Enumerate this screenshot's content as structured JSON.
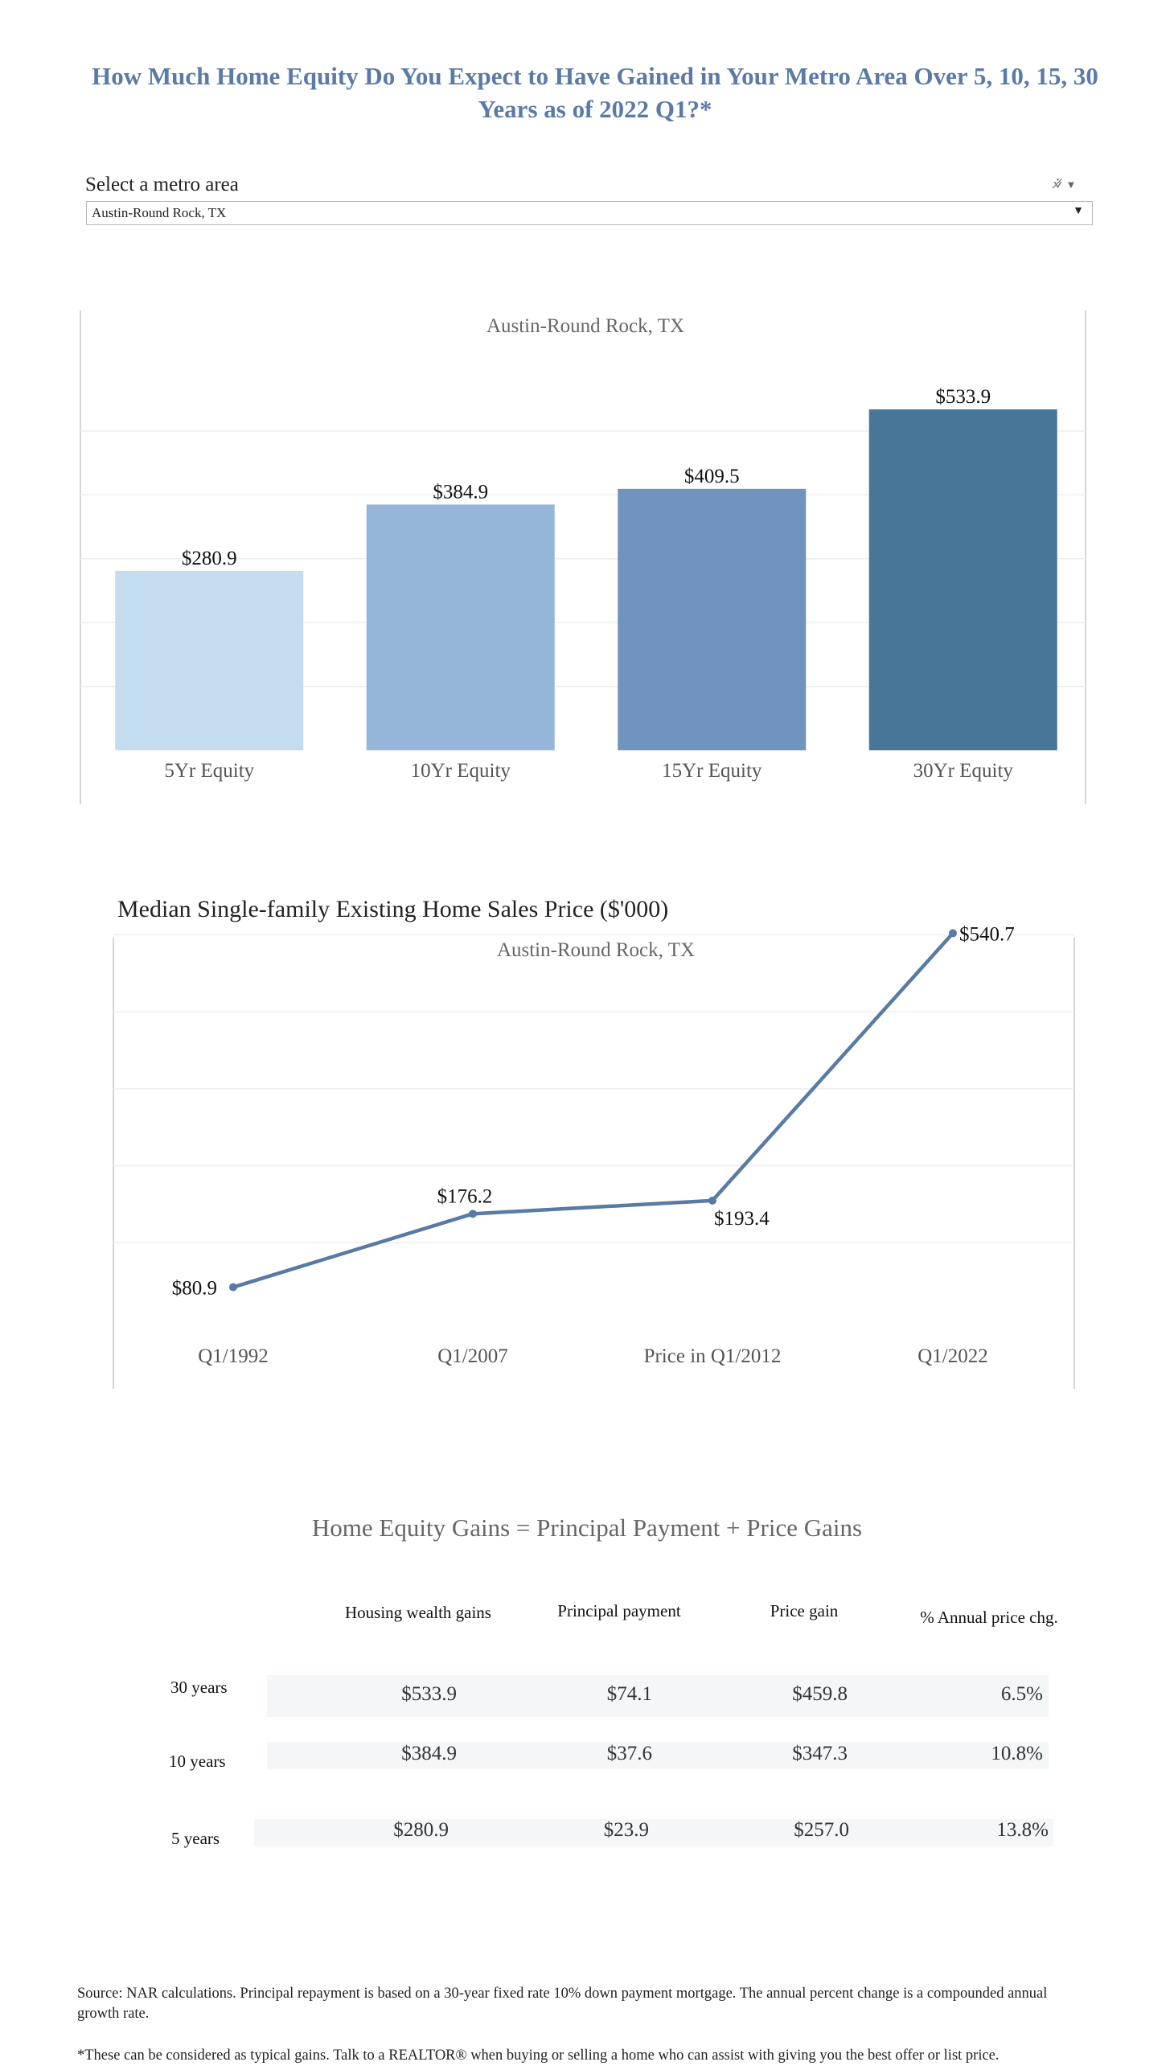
{
  "title": "How Much Home Equity Do You Expect to Have Gained in Your Metro Area Over 5, 10, 15, 30 Years as of 2022 Q1?*",
  "filter": {
    "label": "Select a metro area",
    "selected": "Austin-Round Rock, TX",
    "icons": [
      "clear-filter-icon",
      "dropdown-caret-icon"
    ]
  },
  "chart_data": [
    {
      "type": "bar",
      "title": "Austin-Round Rock, TX",
      "categories": [
        "5Yr Equity",
        "10Yr Equity",
        "15Yr Equity",
        "30Yr Equity"
      ],
      "values": [
        280.9,
        384.9,
        409.5,
        533.9
      ],
      "value_labels": [
        "$280.9",
        "$384.9",
        "$409.5",
        "$533.9"
      ],
      "colors": [
        "#c3dcef",
        "#95b6d9",
        "#7094bd",
        "#477699"
      ],
      "ylim": [
        0,
        600
      ],
      "grid": true
    },
    {
      "type": "line",
      "heading": "Median Single-family Existing Home Sales Price ($'000)",
      "title": "Austin-Round Rock, TX",
      "categories": [
        "Q1/1992",
        "Q1/2007",
        "Price in Q1/2012",
        "Q1/2022"
      ],
      "values": [
        80.9,
        176.2,
        193.4,
        540.7
      ],
      "value_labels": [
        "$80.9",
        "$176.2",
        "$193.4",
        "$540.7"
      ],
      "color": "#587aa3",
      "ylim": [
        0,
        585
      ],
      "grid": true
    }
  ],
  "equity_table": {
    "title": "Home Equity Gains = Principal Payment + Price Gains",
    "headers": [
      "Housing wealth gains",
      "Principal payment",
      "Price gain",
      "% Annual price chg."
    ],
    "rows": [
      {
        "label": "30 years",
        "cells": [
          "$533.9",
          "$74.1",
          "$459.8",
          "6.5%"
        ]
      },
      {
        "label": "10 years",
        "cells": [
          "$384.9",
          "$37.6",
          "$347.3",
          "10.8%"
        ]
      },
      {
        "label": "5 years",
        "cells": [
          "$280.9",
          "$23.9",
          "$257.0",
          "13.8%"
        ]
      }
    ]
  },
  "footnotes": {
    "source": "Source: NAR calculations.  Principal repayment is based on a 30-year fixed rate 10% down payment mortgage. The annual percent change is a compounded annual growth rate.",
    "note": "*These can be considered as typical gains. Talk to a REALTOR® when buying or selling a home who can assist with giving you the best offer or list price."
  }
}
